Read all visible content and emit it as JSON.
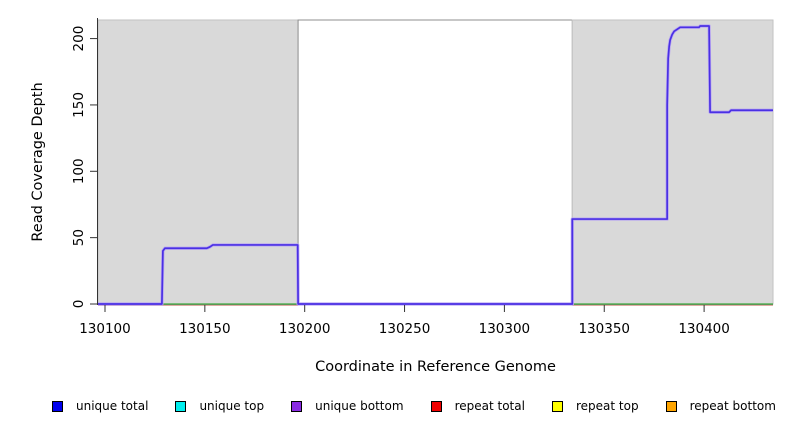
{
  "chart_data": {
    "type": "line",
    "title": "",
    "xlabel": "Coordinate in Reference Genome",
    "ylabel": "Read Coverage Depth",
    "xlim": [
      130096.5,
      130434.5
    ],
    "ylim": [
      0,
      214
    ],
    "x_ticks": [
      130100,
      130150,
      130200,
      130250,
      130300,
      130350,
      130400
    ],
    "y_ticks": [
      0,
      50,
      100,
      150,
      200
    ],
    "grid": false,
    "legend_position": "bottom",
    "colors": {
      "shaded_fill": "#d9d9d9",
      "shaded_border": "#c2c2c2",
      "white_region_border": "#8f8f8f",
      "axis": "#333333",
      "curve_inner": "#4a30e4",
      "curve_outer": "#b9a6f2",
      "baseline_green": "#58b158",
      "baseline_under": "#dc9e96"
    },
    "shaded_regions": [
      {
        "x1": 130096.5,
        "x2": 130196.7,
        "fill": "#d9d9d9",
        "border": "#c2c2c2"
      },
      {
        "x1": 130196.7,
        "x2": 130334.0,
        "fill": "#ffffff",
        "border": "#8f8f8f"
      },
      {
        "x1": 130334.0,
        "x2": 130434.5,
        "fill": "#d9d9d9",
        "border": "#c2c2c2"
      }
    ],
    "series": [
      {
        "name": "zero-coverage-baseline",
        "color": "#58b158",
        "points": [
          [
            130096.5,
            0
          ],
          [
            130434.5,
            0
          ]
        ]
      },
      {
        "name": "unique-coverage-curve",
        "color": "#4a30e4",
        "points": [
          [
            130096.5,
            0
          ],
          [
            130128.5,
            0
          ],
          [
            130129,
            40
          ],
          [
            130130,
            42
          ],
          [
            130151,
            42
          ],
          [
            130152.5,
            43
          ],
          [
            130154,
            44.5
          ],
          [
            130196.5,
            44.5
          ],
          [
            130196.7,
            0
          ],
          [
            130334,
            0
          ],
          [
            130334,
            64
          ],
          [
            130381.5,
            64
          ],
          [
            130381.5,
            150
          ],
          [
            130382,
            185
          ],
          [
            130382.5,
            194
          ],
          [
            130383,
            199
          ],
          [
            130384,
            203
          ],
          [
            130385,
            205.5
          ],
          [
            130386.5,
            207
          ],
          [
            130388,
            208.5
          ],
          [
            130397.5,
            208.5
          ],
          [
            130398,
            209.5
          ],
          [
            130402.5,
            209.5
          ],
          [
            130403,
            144.5
          ],
          [
            130412.5,
            144.5
          ],
          [
            130413.5,
            146
          ],
          [
            130434.5,
            146
          ]
        ]
      }
    ],
    "legend": [
      {
        "label": "unique total",
        "color": "#0000ee"
      },
      {
        "label": "unique top",
        "color": "#00eeee"
      },
      {
        "label": "unique bottom",
        "color": "#8a2be2"
      },
      {
        "label": "repeat total",
        "color": "#ee0000"
      },
      {
        "label": "repeat top",
        "color": "#ffff00"
      },
      {
        "label": "repeat bottom",
        "color": "#ffa500"
      }
    ]
  }
}
